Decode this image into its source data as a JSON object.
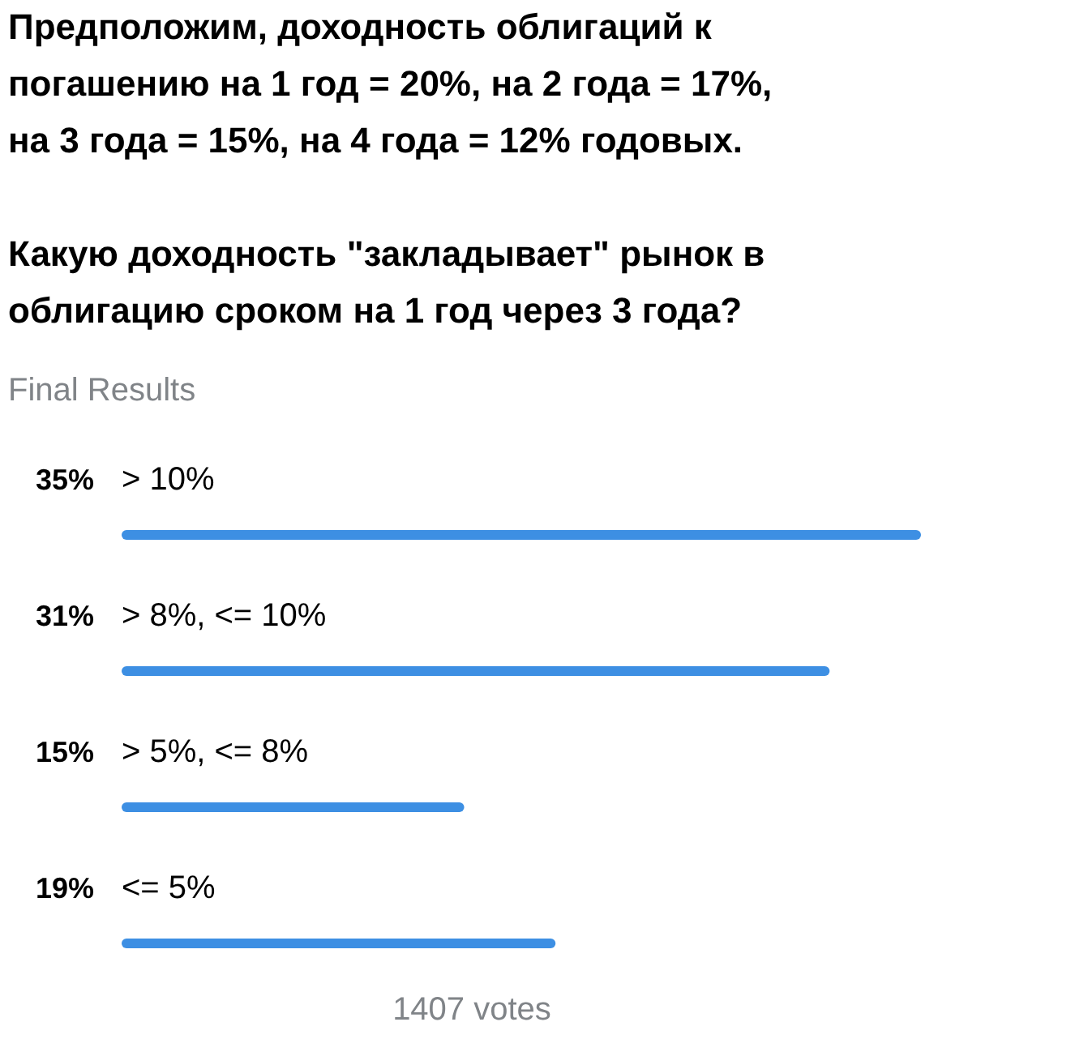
{
  "chart_data": {
    "type": "bar",
    "orientation": "horizontal",
    "title": "Предположим, доходность облигаций к\nпогашению на 1 год = 20%, на 2 года = 17%,\nна 3 года = 15%, на 4 года = 12% годовых.\n\nКакую доходность \"закладывает\" рынок в\nоблигацию сроком на 1 год через 3 года?",
    "subtitle": "Final Results",
    "categories": [
      "> 10%",
      "> 8%, <= 10%",
      "> 5%, <= 8%",
      "<= 5%"
    ],
    "values": [
      35,
      31,
      15,
      19
    ],
    "value_labels": [
      "35%",
      "31%",
      "15%",
      "19%"
    ],
    "color": "#3d8fe3",
    "annotations": [
      "1407 votes"
    ]
  }
}
